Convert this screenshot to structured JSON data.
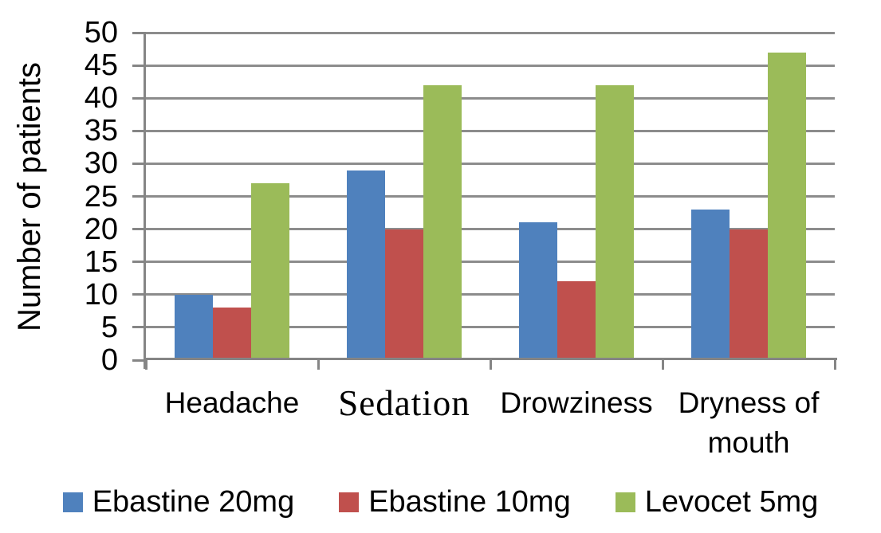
{
  "chart_data": {
    "type": "bar",
    "title": "",
    "ylabel": "Number of patients",
    "xlabel": "",
    "categories": [
      "Headache",
      "Sedation",
      "Drowziness",
      "Dryness of mouth"
    ],
    "series": [
      {
        "name": "Ebastine 20mg",
        "color": "#4F81BD",
        "values": [
          10,
          29,
          21,
          23
        ]
      },
      {
        "name": "Ebastine 10mg",
        "color": "#C0504D",
        "values": [
          8,
          20,
          12,
          20
        ]
      },
      {
        "name": "Levocet 5mg",
        "color": "#9BBB59",
        "values": [
          27,
          42,
          42,
          47
        ]
      }
    ],
    "ylim": [
      0,
      50
    ],
    "ytick_interval": 5,
    "ytick_labels": [
      "0",
      "5",
      "10",
      "15",
      "20",
      "25",
      "30",
      "35",
      "40",
      "45",
      "50"
    ],
    "grid": "horizontal gridlines on",
    "legend_position": "bottom",
    "gridline_color": "#8C8C8C",
    "axis_color": "#858585",
    "text_color": "#000000",
    "background_color": "#FFFFFF"
  }
}
